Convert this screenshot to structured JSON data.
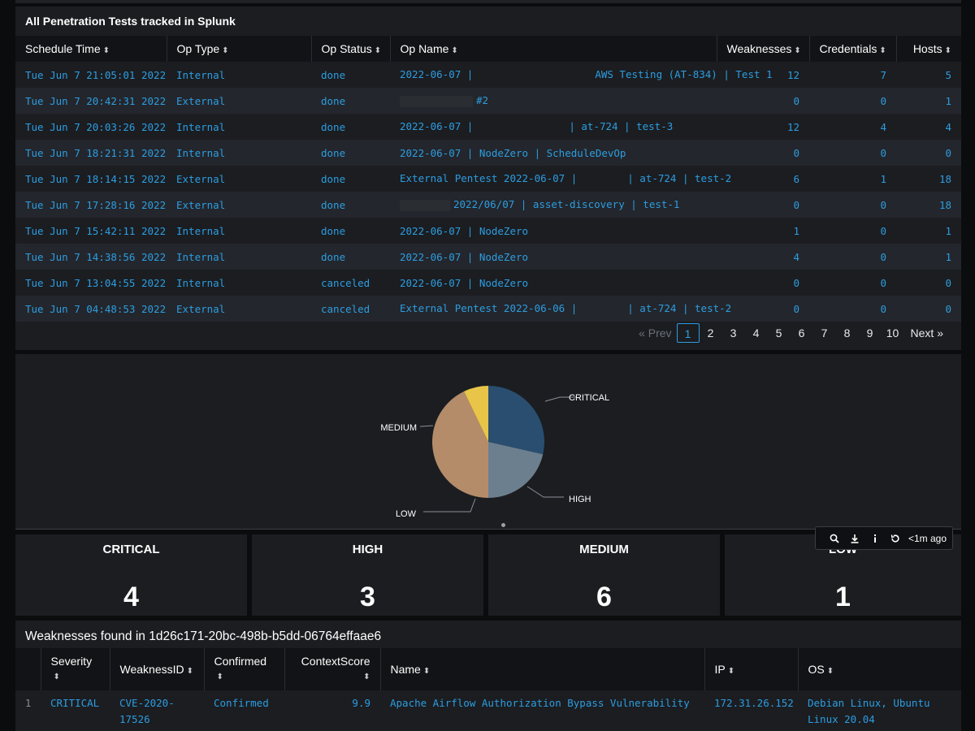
{
  "panel1": {
    "title": "All Penetration Tests tracked in Splunk",
    "columns": [
      "Schedule Time",
      "Op Type",
      "Op Status",
      "Op Name",
      "Weaknesses",
      "Credentials",
      "Hosts"
    ],
    "rows": [
      {
        "time": "Tue Jun 7 21:05:01 2022",
        "type": "Internal",
        "status": "done",
        "name_a": "2022-06-07 |",
        "name_b": "AWS Testing (AT-834) | Test 1",
        "weak": "12",
        "cred": "7",
        "hosts": "5"
      },
      {
        "time": "Tue Jun 7 20:42:31 2022",
        "type": "External",
        "status": "done",
        "name_a": "",
        "name_b": "#2",
        "weak": "0",
        "cred": "0",
        "hosts": "1"
      },
      {
        "time": "Tue Jun 7 20:03:26 2022",
        "type": "Internal",
        "status": "done",
        "name_a": "2022-06-07 |",
        "name_b": "| at-724 | test-3",
        "weak": "12",
        "cred": "4",
        "hosts": "4"
      },
      {
        "time": "Tue Jun 7 18:21:31 2022",
        "type": "Internal",
        "status": "done",
        "name_a": "2022-06-07 | NodeZero | ScheduleDevOp",
        "name_b": "",
        "weak": "0",
        "cred": "0",
        "hosts": "0"
      },
      {
        "time": "Tue Jun 7 18:14:15 2022",
        "type": "External",
        "status": "done",
        "name_a": "External Pentest 2022-06-07 |",
        "name_b": "| at-724 | test-2",
        "weak": "6",
        "cred": "1",
        "hosts": "18"
      },
      {
        "time": "Tue Jun 7 17:28:16 2022",
        "type": "External",
        "status": "done",
        "name_a": "",
        "name_b": "2022/06/07 | asset-discovery | test-1",
        "weak": "0",
        "cred": "0",
        "hosts": "18"
      },
      {
        "time": "Tue Jun 7 15:42:11 2022",
        "type": "Internal",
        "status": "done",
        "name_a": "2022-06-07 | NodeZero",
        "name_b": "",
        "weak": "1",
        "cred": "0",
        "hosts": "1"
      },
      {
        "time": "Tue Jun 7 14:38:56 2022",
        "type": "Internal",
        "status": "done",
        "name_a": "2022-06-07 | NodeZero",
        "name_b": "",
        "weak": "4",
        "cred": "0",
        "hosts": "1"
      },
      {
        "time": "Tue Jun 7 13:04:55 2022",
        "type": "Internal",
        "status": "canceled",
        "name_a": "2022-06-07 | NodeZero",
        "name_b": "",
        "weak": "0",
        "cred": "0",
        "hosts": "0"
      },
      {
        "time": "Tue Jun 7 04:48:53 2022",
        "type": "External",
        "status": "canceled",
        "name_a": "External Pentest 2022-06-06 |",
        "name_b": "| at-724 | test-2",
        "weak": "0",
        "cred": "0",
        "hosts": "0"
      }
    ],
    "pager": {
      "prev": "« Prev",
      "pages": [
        "1",
        "2",
        "3",
        "4",
        "5",
        "6",
        "7",
        "8",
        "9",
        "10"
      ],
      "next": "Next »"
    }
  },
  "chart_data": {
    "type": "pie",
    "categories": [
      "CRITICAL",
      "HIGH",
      "MEDIUM",
      "LOW"
    ],
    "values": [
      4,
      3,
      6,
      1
    ],
    "colors": [
      "#294e70",
      "#6c7f8f",
      "#b48c6a",
      "#e8c548"
    ]
  },
  "singles": {
    "critical": {
      "label": "CRITICAL",
      "value": "4"
    },
    "high": {
      "label": "HIGH",
      "value": "3"
    },
    "medium": {
      "label": "MEDIUM",
      "value": "6"
    },
    "low": {
      "label": "LOW",
      "value": "1"
    }
  },
  "toolbar": {
    "ago": "<1m ago"
  },
  "panel3": {
    "title": "Weaknesses found in 1d26c171-20bc-498b-b5dd-06764effaae6",
    "columns": [
      "Severity",
      "WeaknessID",
      "Confirmed",
      "ContextScore",
      "Name",
      "IP",
      "OS"
    ],
    "rows": [
      {
        "n": "1",
        "severity": "CRITICAL",
        "id": "CVE-2020-17526",
        "confirmed": "Confirmed",
        "score": "9.9",
        "name": "Apache Airflow Authorization Bypass Vulnerability",
        "ip": "172.31.26.152",
        "os": "Debian Linux, Ubuntu Linux 20.04"
      }
    ]
  }
}
